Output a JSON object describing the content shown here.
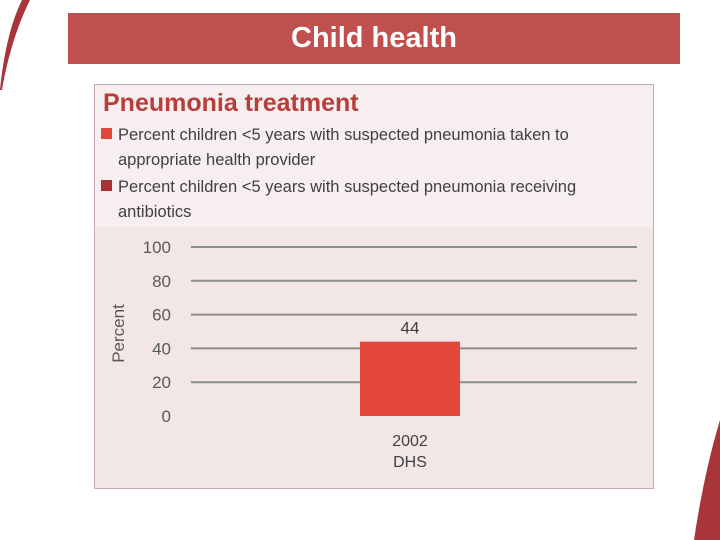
{
  "header": {
    "title": "Child health"
  },
  "chart_data": {
    "type": "bar",
    "title": "Pneumonia treatment",
    "legend": [
      {
        "name": "Percent children <5 years with suspected pneumonia taken to appropriate health provider",
        "color": "#e3463b"
      },
      {
        "name": "Percent children <5 years with suspected pneumonia receiving antibiotics",
        "color": "#a83233"
      }
    ],
    "categories": [
      {
        "line1": "2002",
        "line2": "DHS"
      }
    ],
    "series": [
      {
        "name": "Percent children <5 years with suspected pneumonia taken to appropriate health provider",
        "values": [
          44
        ],
        "color": "#e3463b"
      }
    ],
    "value_labels": [
      "44"
    ],
    "ylabel": "Percent",
    "ylim": [
      0,
      100
    ],
    "yticks": [
      0,
      20,
      40,
      60,
      80,
      100
    ],
    "grid": true
  }
}
